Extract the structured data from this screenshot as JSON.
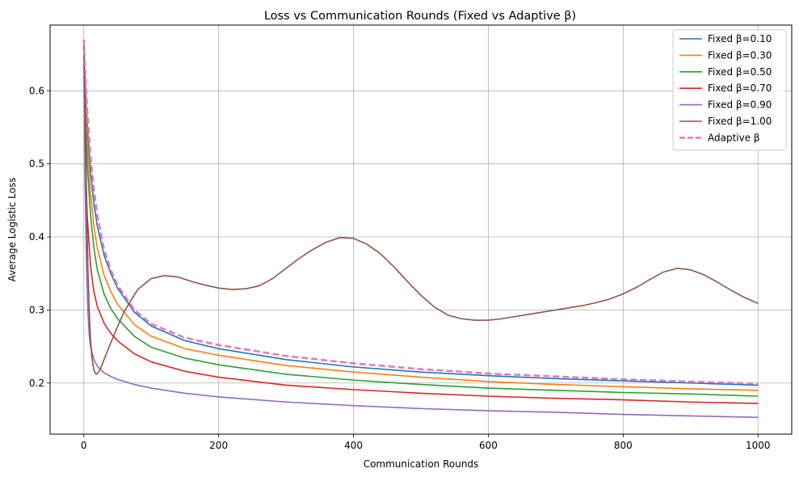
{
  "chart_data": {
    "type": "line",
    "title": "Loss vs Communication Rounds (Fixed vs Adaptive β)",
    "xlabel": "Communication Rounds",
    "ylabel": "Average Logistic Loss",
    "xlim": [
      -50,
      1050
    ],
    "ylim": [
      0.13,
      0.69
    ],
    "xticks": [
      0,
      200,
      400,
      600,
      800,
      1000
    ],
    "yticks": [
      0.2,
      0.3,
      0.4,
      0.5,
      0.6
    ],
    "xtick_labels": [
      "0",
      "200",
      "400",
      "600",
      "800",
      "1000"
    ],
    "ytick_labels": [
      "0.2",
      "0.3",
      "0.4",
      "0.5",
      "0.6"
    ],
    "grid": true,
    "legend_position": "top-right",
    "series": [
      {
        "name": "Fixed β=0.10",
        "color": "#1f77b4",
        "dash": "solid",
        "x": [
          0,
          2,
          5,
          10,
          15,
          20,
          30,
          40,
          50,
          75,
          100,
          150,
          200,
          300,
          400,
          500,
          600,
          700,
          800,
          900,
          1000
        ],
        "y": [
          0.665,
          0.61,
          0.555,
          0.49,
          0.445,
          0.415,
          0.375,
          0.35,
          0.33,
          0.297,
          0.278,
          0.258,
          0.247,
          0.232,
          0.222,
          0.215,
          0.21,
          0.206,
          0.203,
          0.2,
          0.197
        ]
      },
      {
        "name": "Fixed β=0.30",
        "color": "#ff7f0e",
        "dash": "solid",
        "x": [
          0,
          2,
          5,
          10,
          15,
          20,
          30,
          40,
          50,
          75,
          100,
          150,
          200,
          300,
          400,
          500,
          600,
          700,
          800,
          900,
          1000
        ],
        "y": [
          0.66,
          0.59,
          0.53,
          0.46,
          0.415,
          0.385,
          0.348,
          0.325,
          0.308,
          0.28,
          0.264,
          0.247,
          0.238,
          0.224,
          0.215,
          0.208,
          0.202,
          0.198,
          0.195,
          0.192,
          0.19
        ]
      },
      {
        "name": "Fixed β=0.50",
        "color": "#2ca02c",
        "dash": "solid",
        "x": [
          0,
          2,
          5,
          10,
          15,
          20,
          30,
          40,
          50,
          75,
          100,
          150,
          200,
          300,
          400,
          500,
          600,
          700,
          800,
          900,
          1000
        ],
        "y": [
          0.655,
          0.57,
          0.5,
          0.43,
          0.385,
          0.355,
          0.322,
          0.302,
          0.288,
          0.264,
          0.249,
          0.234,
          0.225,
          0.212,
          0.204,
          0.198,
          0.193,
          0.19,
          0.187,
          0.185,
          0.182
        ]
      },
      {
        "name": "Fixed β=0.70",
        "color": "#d62728",
        "dash": "solid",
        "x": [
          0,
          2,
          5,
          10,
          15,
          20,
          30,
          40,
          50,
          75,
          100,
          150,
          200,
          300,
          400,
          500,
          600,
          700,
          800,
          900,
          1000
        ],
        "y": [
          0.645,
          0.52,
          0.43,
          0.36,
          0.325,
          0.305,
          0.282,
          0.268,
          0.258,
          0.24,
          0.229,
          0.216,
          0.208,
          0.197,
          0.191,
          0.186,
          0.182,
          0.179,
          0.177,
          0.174,
          0.172
        ]
      },
      {
        "name": "Fixed β=0.90",
        "color": "#9467bd",
        "dash": "solid",
        "x": [
          0,
          2,
          4,
          6,
          8,
          10,
          15,
          20,
          30,
          40,
          50,
          75,
          100,
          150,
          200,
          300,
          400,
          500,
          600,
          700,
          800,
          900,
          1000
        ],
        "y": [
          0.64,
          0.47,
          0.36,
          0.3,
          0.266,
          0.25,
          0.232,
          0.223,
          0.214,
          0.209,
          0.205,
          0.198,
          0.193,
          0.186,
          0.181,
          0.174,
          0.169,
          0.165,
          0.162,
          0.16,
          0.157,
          0.155,
          0.153
        ]
      },
      {
        "name": "Fixed β=1.00",
        "color": "#8c564b",
        "dash": "solid",
        "x": [
          0,
          2,
          4,
          6,
          8,
          10,
          12,
          15,
          18,
          20,
          22,
          25,
          30,
          40,
          50,
          60,
          80,
          100,
          120,
          140,
          160,
          180,
          200,
          220,
          240,
          260,
          280,
          300,
          320,
          340,
          360,
          380,
          400,
          420,
          440,
          460,
          480,
          500,
          520,
          540,
          560,
          580,
          600,
          620,
          640,
          660,
          680,
          700,
          720,
          740,
          760,
          780,
          800,
          820,
          840,
          860,
          880,
          900,
          920,
          940,
          960,
          980,
          1000
        ],
        "y": [
          0.66,
          0.56,
          0.45,
          0.36,
          0.3,
          0.26,
          0.235,
          0.218,
          0.212,
          0.213,
          0.215,
          0.22,
          0.232,
          0.255,
          0.277,
          0.298,
          0.328,
          0.343,
          0.347,
          0.345,
          0.339,
          0.334,
          0.33,
          0.328,
          0.329,
          0.333,
          0.343,
          0.357,
          0.371,
          0.383,
          0.393,
          0.399,
          0.398,
          0.39,
          0.377,
          0.359,
          0.339,
          0.32,
          0.304,
          0.293,
          0.288,
          0.286,
          0.286,
          0.288,
          0.291,
          0.294,
          0.297,
          0.3,
          0.303,
          0.306,
          0.31,
          0.315,
          0.322,
          0.331,
          0.342,
          0.352,
          0.357,
          0.355,
          0.348,
          0.338,
          0.327,
          0.317,
          0.309
        ]
      },
      {
        "name": "Adaptive β",
        "color": "#e377c2",
        "dash": "dashed",
        "x": [
          0,
          2,
          5,
          10,
          15,
          20,
          30,
          40,
          50,
          75,
          100,
          150,
          200,
          300,
          400,
          500,
          600,
          700,
          800,
          900,
          1000
        ],
        "y": [
          0.67,
          0.63,
          0.575,
          0.51,
          0.465,
          0.43,
          0.383,
          0.355,
          0.334,
          0.3,
          0.281,
          0.262,
          0.252,
          0.237,
          0.227,
          0.219,
          0.213,
          0.209,
          0.205,
          0.202,
          0.199
        ]
      }
    ]
  }
}
